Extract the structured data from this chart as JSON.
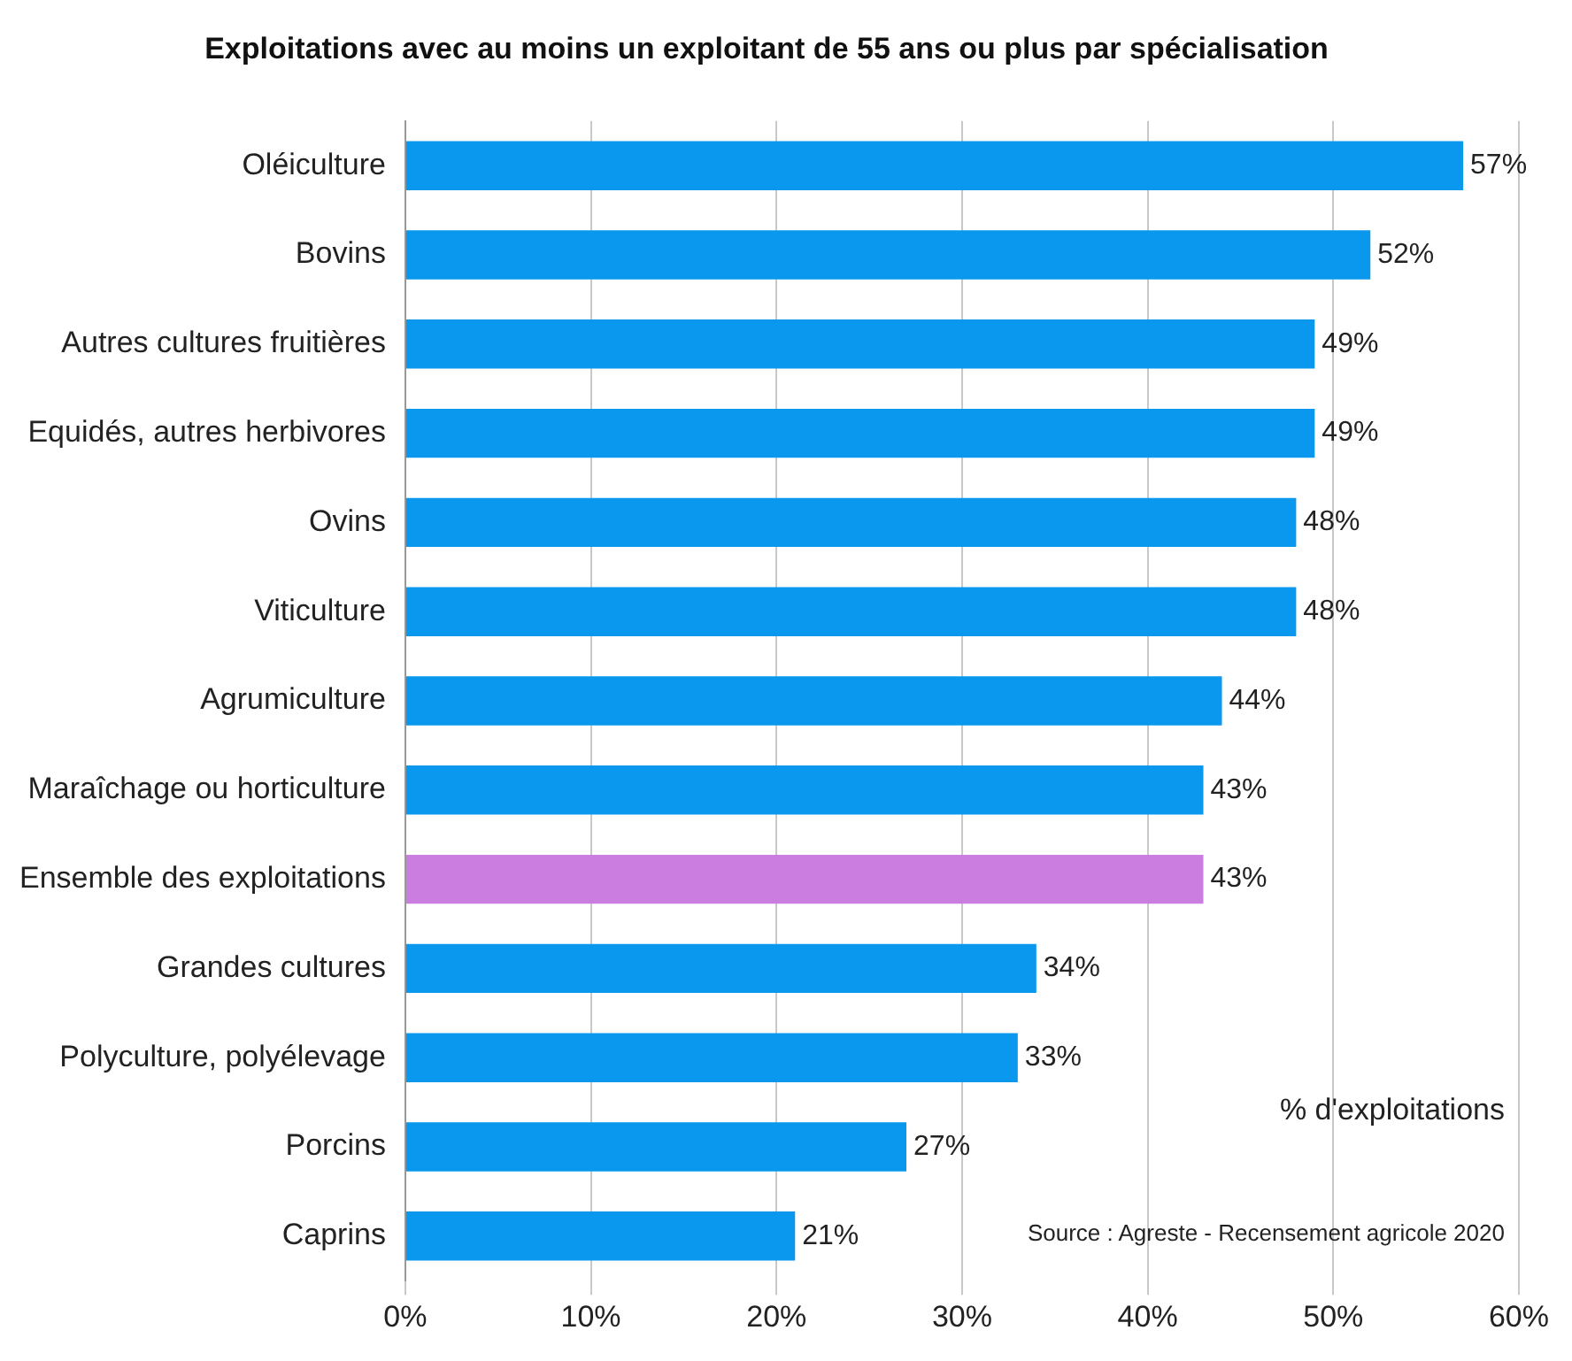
{
  "chart_data": {
    "type": "bar",
    "orientation": "horizontal",
    "title": "Exploitations avec au moins un exploitant de 55 ans ou plus par spécialisation",
    "categories": [
      "Oléiculture",
      "Bovins",
      "Autres cultures fruitières",
      "Equidés, autres herbivores",
      "Ovins",
      "Viticulture",
      "Agrumiculture",
      "Maraîchage ou horticulture",
      "Ensemble des exploitations",
      "Grandes cultures",
      "Polyculture, polyélevage",
      "Porcins",
      "Caprins"
    ],
    "values": [
      57,
      52,
      49,
      49,
      48,
      48,
      44,
      43,
      43,
      34,
      33,
      27,
      21
    ],
    "value_labels": [
      "57%",
      "52%",
      "49%",
      "49%",
      "48%",
      "48%",
      "44%",
      "43%",
      "43%",
      "34%",
      "33%",
      "27%",
      "21%"
    ],
    "colors": [
      "#0a97ee",
      "#0a97ee",
      "#0a97ee",
      "#0a97ee",
      "#0a97ee",
      "#0a97ee",
      "#0a97ee",
      "#0a97ee",
      "#cc7ee0",
      "#0a97ee",
      "#0a97ee",
      "#0a97ee",
      "#0a97ee"
    ],
    "xlim": [
      0,
      60
    ],
    "xticks": [
      {
        "value": 0,
        "label": "0%"
      },
      {
        "value": 10,
        "label": "10%"
      },
      {
        "value": 20,
        "label": "20%"
      },
      {
        "value": 30,
        "label": "30%"
      },
      {
        "value": 40,
        "label": "40%"
      },
      {
        "value": 50,
        "label": "50%"
      },
      {
        "value": 60,
        "label": "60%"
      }
    ],
    "grid": "x",
    "annotations": [
      "% d'exploitations",
      "Source : Agreste - Recensement agricole 2020"
    ]
  }
}
